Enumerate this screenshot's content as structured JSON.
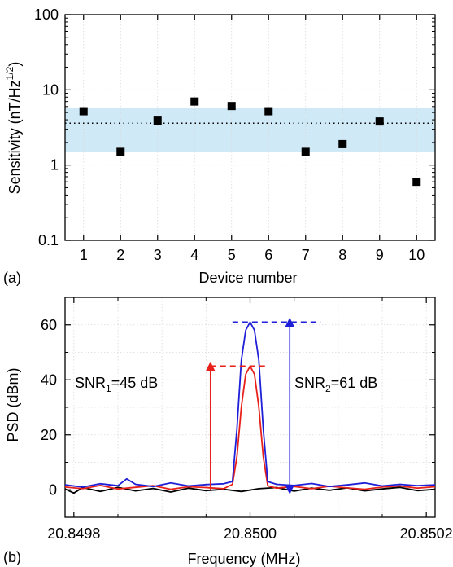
{
  "chart_data": [
    {
      "type": "scatter",
      "panel_label": "(a)",
      "xlabel": "Device number",
      "ylabel_main": "Sensitivity (nT/Hz",
      "ylabel_superscript": "1/2",
      "ylabel_tail": ")",
      "yscale": "log",
      "xlim": [
        0.5,
        10.5
      ],
      "ylim": [
        0.1,
        100
      ],
      "xticks": [
        1,
        2,
        3,
        4,
        5,
        6,
        7,
        8,
        9,
        10
      ],
      "xtick_labels": [
        "1",
        "2",
        "3",
        "4",
        "5",
        "6",
        "7",
        "8",
        "9",
        "10"
      ],
      "yticks": [
        0.1,
        1,
        10,
        100
      ],
      "ytick_labels": [
        "0.1",
        "1",
        "10",
        "100"
      ],
      "grid": true,
      "marker_color": "#000000",
      "band": {
        "low": 1.5,
        "high": 5.8,
        "color": "#cfe9f7"
      },
      "mean_line": {
        "value": 3.6,
        "style": "dotted",
        "color": "#000000"
      },
      "x": [
        1,
        2,
        3,
        4,
        5,
        6,
        7,
        8,
        9,
        10
      ],
      "y": [
        5.2,
        1.5,
        3.9,
        7.0,
        6.1,
        5.2,
        1.5,
        1.9,
        3.8,
        0.6
      ]
    },
    {
      "type": "line",
      "panel_label": "(b)",
      "xlabel": "Frequency (MHz)",
      "ylabel": "PSD (dBm)",
      "xlim": [
        20.84979,
        20.85021
      ],
      "ylim": [
        -10,
        70
      ],
      "xticks": [
        20.8498,
        20.85,
        20.8502
      ],
      "xtick_labels": [
        "20.8498",
        "20.8500",
        "20.8502"
      ],
      "yticks": [
        0,
        20,
        40,
        60
      ],
      "ytick_labels": [
        "0",
        "20",
        "40",
        "60"
      ],
      "grid": true,
      "series": [
        {
          "color": "#000000",
          "x": [
            20.84979,
            20.8498,
            20.84981,
            20.84983,
            20.84985,
            20.84987,
            20.84989,
            20.84991,
            20.84993,
            20.84995,
            20.84997,
            20.84999,
            20.85001,
            20.85003,
            20.85005,
            20.85007,
            20.85009,
            20.85011,
            20.85013,
            20.85015,
            20.85017,
            20.85019,
            20.85021
          ],
          "y": [
            0.3,
            -1.2,
            0.8,
            -0.6,
            0.9,
            -0.4,
            0.5,
            -0.8,
            0.6,
            -0.3,
            0.2,
            -0.6,
            0.4,
            0.8,
            -0.5,
            0.6,
            -0.2,
            0.7,
            -0.4,
            0.3,
            0.9,
            -0.3,
            0.2
          ]
        },
        {
          "color": "#e8201a",
          "x": [
            20.84979,
            20.84981,
            20.84983,
            20.84985,
            20.84987,
            20.84989,
            20.84991,
            20.84993,
            20.84995,
            20.84997,
            20.84998,
            20.849985,
            20.84999,
            20.849995,
            20.85,
            20.850005,
            20.85001,
            20.850015,
            20.85002,
            20.85003,
            20.85005,
            20.85007,
            20.85009,
            20.85011,
            20.85013,
            20.85015,
            20.85017,
            20.85019,
            20.85021
          ],
          "y": [
            1.0,
            0.4,
            1.6,
            0.3,
            0.9,
            1.5,
            0.2,
            1.1,
            0.8,
            0.4,
            2.0,
            12,
            30,
            42,
            45,
            42,
            30,
            12,
            1.5,
            0.6,
            1.2,
            0.4,
            1.3,
            0.7,
            0.2,
            1.0,
            1.4,
            0.6,
            1.1
          ]
        },
        {
          "color": "#1f1fd8",
          "x": [
            20.84979,
            20.84981,
            20.84983,
            20.84985,
            20.84986,
            20.84987,
            20.84989,
            20.84991,
            20.84993,
            20.84995,
            20.84997,
            20.84998,
            20.849985,
            20.84999,
            20.849995,
            20.85,
            20.850005,
            20.85001,
            20.850015,
            20.85002,
            20.85003,
            20.85005,
            20.85007,
            20.85009,
            20.85011,
            20.85013,
            20.85015,
            20.85017,
            20.85019,
            20.85021
          ],
          "y": [
            1.8,
            1.0,
            2.2,
            1.5,
            4.0,
            2.0,
            1.2,
            2.5,
            1.4,
            1.9,
            2.2,
            3.0,
            22,
            47,
            58,
            61,
            58,
            47,
            22,
            3.0,
            2.0,
            1.6,
            2.3,
            1.2,
            1.8,
            2.5,
            1.4,
            2.0,
            1.5,
            1.8
          ]
        }
      ],
      "annotations": [
        {
          "id": "snr1",
          "text_main": "SNR",
          "text_sub": "1",
          "text_tail": "=45 dB",
          "color": "#e8201a",
          "arrow_x": 20.849955,
          "arrow_from": 0,
          "arrow_to": 45,
          "dash_from": 20.849955,
          "dash_to": 20.85002,
          "label_x": 20.84983,
          "label_y": 27
        },
        {
          "id": "snr2",
          "text_main": "SNR",
          "text_sub": "2",
          "text_tail": "=61 dB",
          "color": "#1f1fd8",
          "arrow_x": 20.850045,
          "arrow_from": 0,
          "arrow_to": 61,
          "dash_from": 20.84998,
          "dash_to": 20.85008,
          "label_x": 20.85008,
          "label_y": 27
        }
      ]
    }
  ]
}
